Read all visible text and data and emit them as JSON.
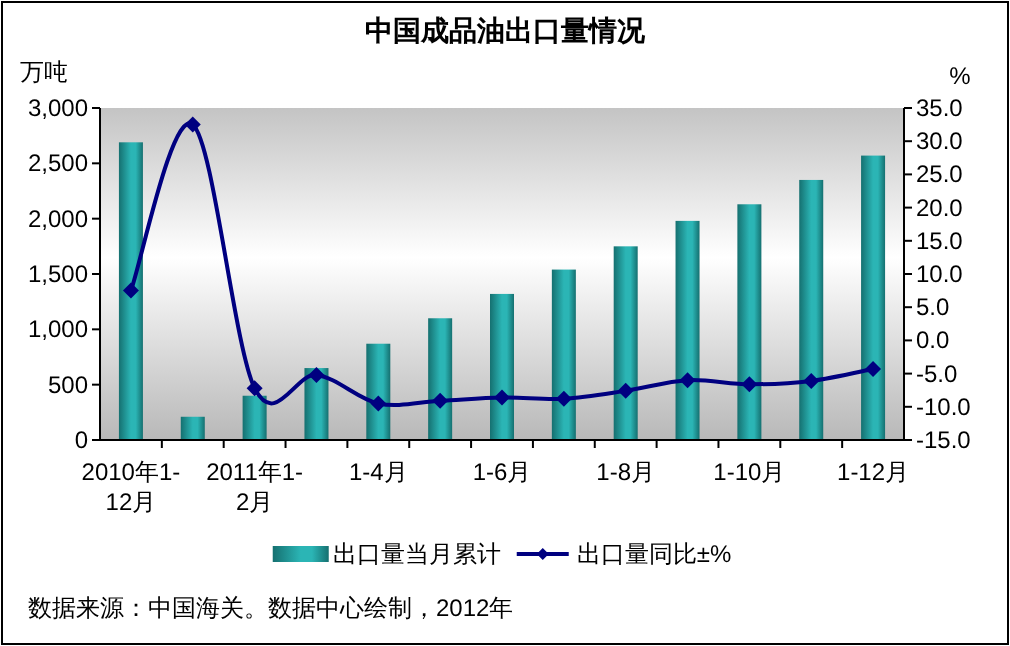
{
  "chart_data": {
    "type": "bar",
    "title": "中国成品油出口量情况",
    "ylabel": "万吨",
    "y2label": "%",
    "categories": [
      "2010年1-12月",
      null,
      "2011年1-2月",
      null,
      "1-4月",
      null,
      "1-6月",
      null,
      "1-8月",
      null,
      "1-10月",
      null,
      "1-12月"
    ],
    "series": [
      {
        "name": "出口量当月累计",
        "color": "#2bb5b5",
        "values": [
          2690,
          210,
          400,
          650,
          870,
          1100,
          1320,
          1540,
          1750,
          1980,
          2130,
          2350,
          2570
        ]
      },
      {
        "name": "出口量同比±%",
        "type": "line",
        "axis": "y2",
        "color": "#000080",
        "marker": "diamond",
        "values": [
          7.5,
          32.5,
          -7.2,
          -5.2,
          -9.5,
          -9.1,
          -8.6,
          -8.8,
          -7.6,
          -6.0,
          -6.6,
          -6.1,
          -4.3
        ]
      }
    ],
    "ylim": [
      0,
      3000
    ],
    "yticks": [
      0,
      {
        "value": 500,
        "label": "500"
      },
      {
        "value": 1000,
        "label": "1,000"
      },
      {
        "value": 1500,
        "label": "1,500"
      },
      {
        "value": 2000,
        "label": "2,000"
      },
      {
        "value": 2500,
        "label": "2,500"
      },
      {
        "value": 3000,
        "label": "3,000"
      }
    ],
    "y2lim": [
      -15,
      35
    ],
    "y2ticks": [
      {
        "value": -15,
        "label": "-15.0"
      },
      {
        "value": -10,
        "label": "-10.0"
      },
      {
        "value": -5,
        "label": "-5.0"
      },
      {
        "value": 0,
        "label": "0.0"
      },
      {
        "value": 5,
        "label": "5.0"
      },
      {
        "value": 10,
        "label": "10.0"
      },
      {
        "value": 15,
        "label": "15.0"
      },
      {
        "value": 20,
        "label": "20.0"
      },
      {
        "value": 25,
        "label": "25.0"
      },
      {
        "value": 30,
        "label": "30.0"
      },
      {
        "value": 35,
        "label": "35.0"
      }
    ],
    "grid": false,
    "legend": "bottom",
    "annotations": [
      "数据来源：中国海关。数据中心绘制，2012年"
    ]
  }
}
